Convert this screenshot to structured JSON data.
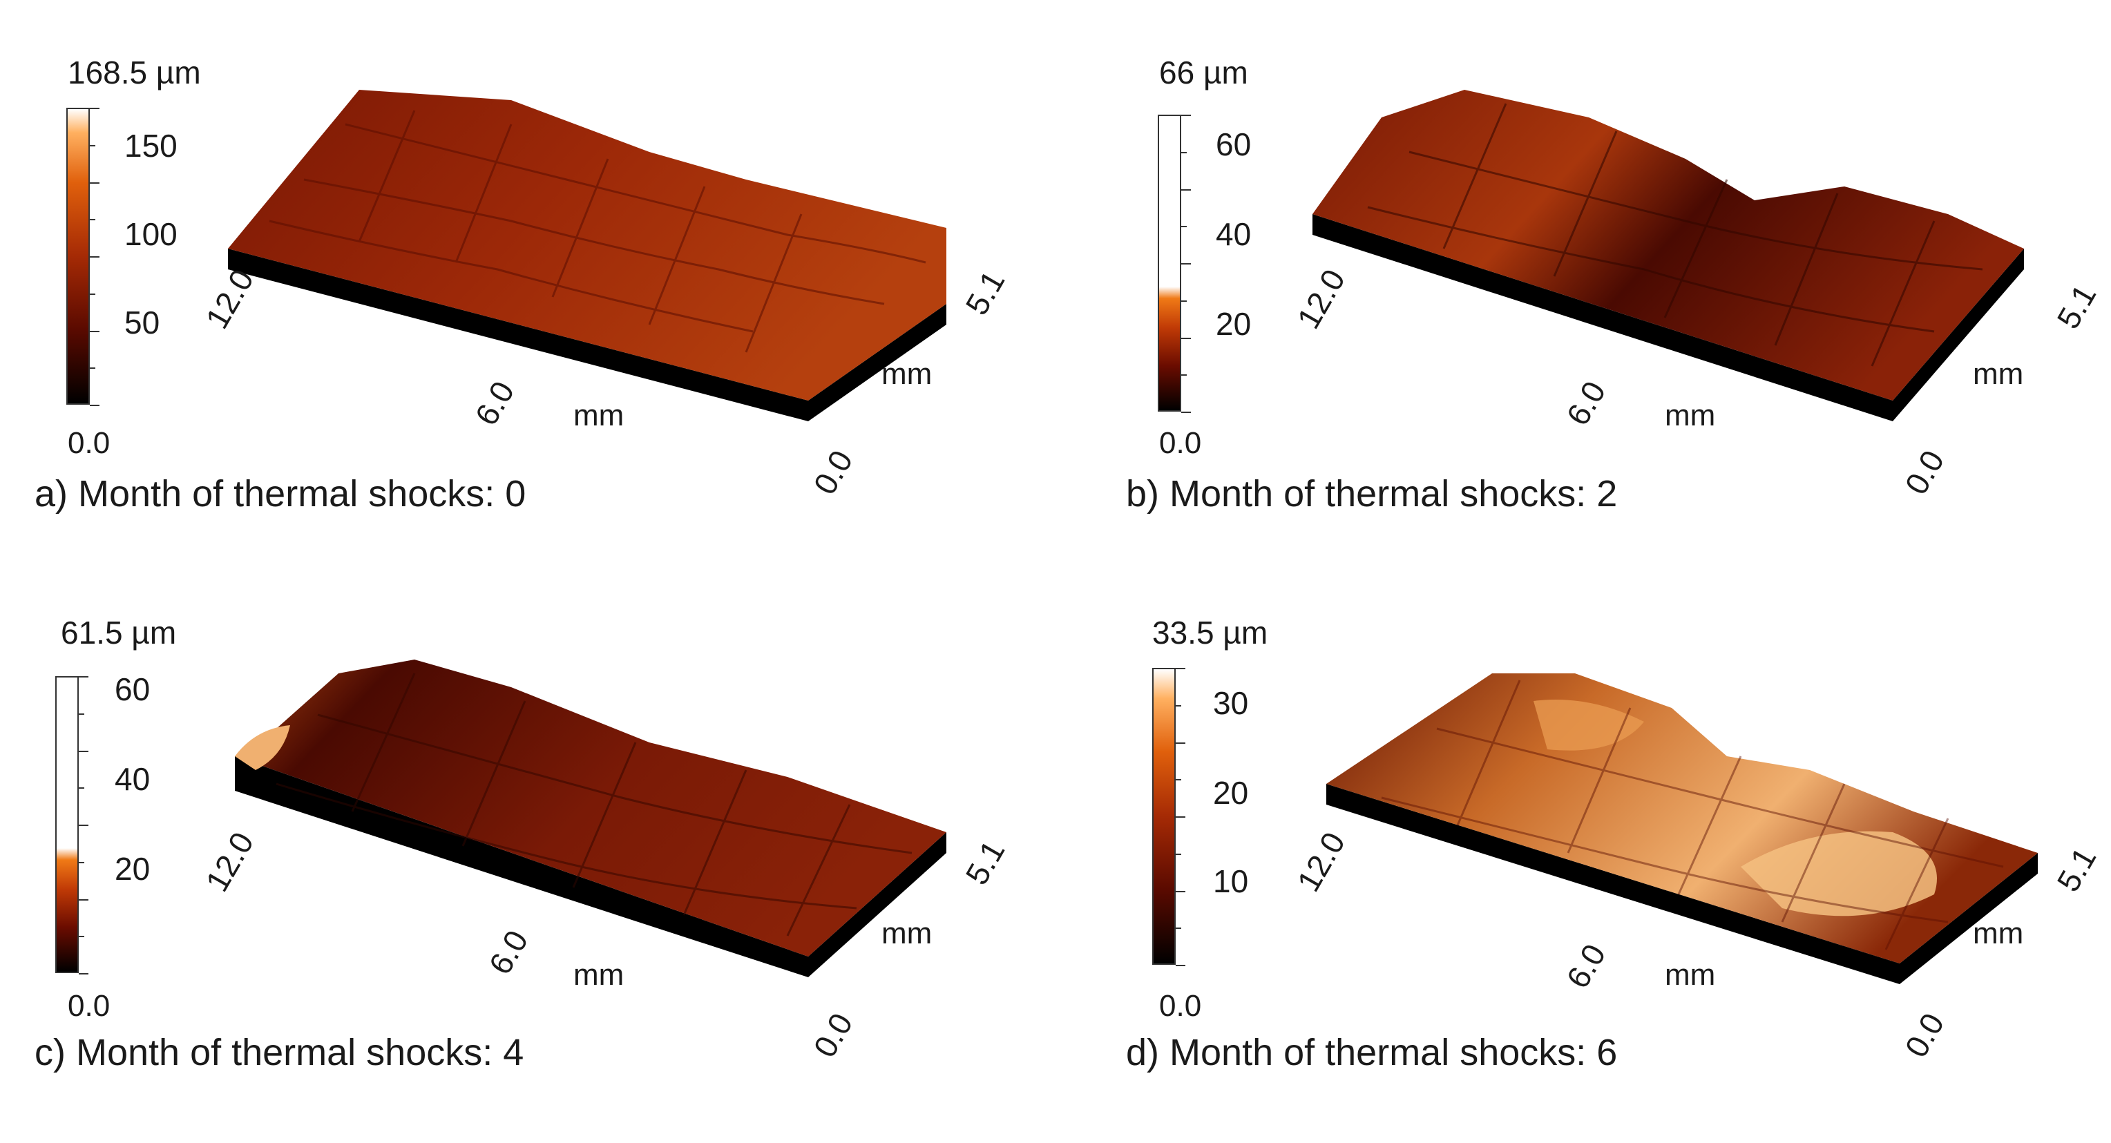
{
  "panels": [
    {
      "caption": "a) Month of thermal shocks: 0",
      "scale_max_label": "168.5 µm",
      "scale_min_label": "0.0",
      "ticks": [
        "150",
        "100",
        "50"
      ],
      "tick_values": [
        150,
        100,
        50
      ],
      "scale_max": 168.5,
      "x_axis": {
        "start": "12.0",
        "mid": "6.0",
        "end": "0.0",
        "unit": "mm"
      },
      "y_axis": {
        "end": "5.1",
        "unit": "mm"
      },
      "palette": [
        "#000000",
        "#5a0a00",
        "#a52a05",
        "#e0600c",
        "#ffb060",
        "#ffffff"
      ]
    },
    {
      "caption": "b) Month of thermal shocks: 2",
      "scale_max_label": "66 µm",
      "scale_min_label": "0.0",
      "ticks": [
        "60",
        "40",
        "20"
      ],
      "tick_values": [
        60,
        40,
        20
      ],
      "scale_max": 66,
      "x_axis": {
        "start": "12.0",
        "mid": "6.0",
        "end": "0.0",
        "unit": "mm"
      },
      "y_axis": {
        "end": "5.1",
        "unit": "mm"
      },
      "palette": [
        "#000000",
        "#6a0c00",
        "#c03a06",
        "#f07a16",
        "#ffffff",
        "#ffffff"
      ]
    },
    {
      "caption": "c) Month of thermal shocks: 4",
      "scale_max_label": "61.5 µm",
      "scale_min_label": "0.0",
      "ticks": [
        "60",
        "40",
        "20"
      ],
      "tick_values": [
        60,
        40,
        20
      ],
      "scale_max": 61.5,
      "x_axis": {
        "start": "12.0",
        "mid": "6.0",
        "end": "0.0",
        "unit": "mm"
      },
      "y_axis": {
        "end": "5.1",
        "unit": "mm"
      },
      "palette": [
        "#000000",
        "#6a0c00",
        "#c03a06",
        "#f07a16",
        "#ffffff",
        "#ffffff"
      ]
    },
    {
      "caption": "d) Month of thermal shocks: 6",
      "scale_max_label": "33.5 µm",
      "scale_min_label": "0.0",
      "ticks": [
        "30",
        "20",
        "10"
      ],
      "tick_values": [
        30,
        20,
        10
      ],
      "scale_max": 33.5,
      "x_axis": {
        "start": "12.0",
        "mid": "6.0",
        "end": "0.0",
        "unit": "mm"
      },
      "y_axis": {
        "end": "5.1",
        "unit": "mm"
      },
      "palette": [
        "#000000",
        "#5a0a00",
        "#a52a05",
        "#e0600c",
        "#ffb060",
        "#ffffff"
      ]
    }
  ],
  "surface_colors": {
    "base": "#000000",
    "panel_a": [
      "#7a1804",
      "#9c2808",
      "#b5400e"
    ],
    "panel_b": [
      "#4a0a02",
      "#7a1a06",
      "#a8360c"
    ],
    "panel_c": [
      "#4a0a02",
      "#7a1a06",
      "#a8400e"
    ],
    "panel_d": [
      "#6a1604",
      "#b8501a",
      "#f0b070"
    ]
  }
}
